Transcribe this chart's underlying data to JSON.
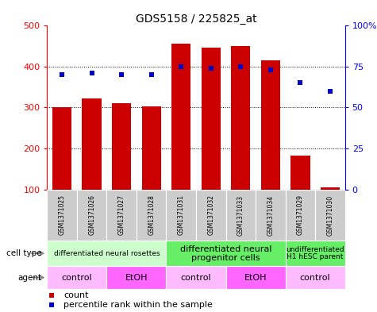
{
  "title": "GDS5158 / 225825_at",
  "samples": [
    "GSM1371025",
    "GSM1371026",
    "GSM1371027",
    "GSM1371028",
    "GSM1371031",
    "GSM1371032",
    "GSM1371033",
    "GSM1371034",
    "GSM1371029",
    "GSM1371030"
  ],
  "counts": [
    300,
    322,
    311,
    302,
    455,
    447,
    450,
    415,
    182,
    105
  ],
  "percentile_ranks": [
    70,
    71,
    70,
    70,
    75,
    74,
    75,
    73,
    65,
    60
  ],
  "ylim_left": [
    100,
    500
  ],
  "ylim_right": [
    0,
    100
  ],
  "left_ticks": [
    100,
    200,
    300,
    400,
    500
  ],
  "right_ticks": [
    0,
    25,
    50,
    75,
    100
  ],
  "bar_color": "#cc0000",
  "dot_color": "#0000cc",
  "cell_type_groups": [
    {
      "label": "differentiated neural rosettes",
      "start": 0,
      "end": 4,
      "color": "#ccffcc",
      "fontsize": 6.5
    },
    {
      "label": "differentiated neural\nprogenitor cells",
      "start": 4,
      "end": 8,
      "color": "#66ee66",
      "fontsize": 8
    },
    {
      "label": "undifferentiated\nH1 hESC parent",
      "start": 8,
      "end": 10,
      "color": "#66ee66",
      "fontsize": 6.5
    }
  ],
  "agent_groups": [
    {
      "label": "control",
      "start": 0,
      "end": 2,
      "color": "#ffbbff"
    },
    {
      "label": "EtOH",
      "start": 2,
      "end": 4,
      "color": "#ff66ff"
    },
    {
      "label": "control",
      "start": 4,
      "end": 6,
      "color": "#ffbbff"
    },
    {
      "label": "EtOH",
      "start": 6,
      "end": 8,
      "color": "#ff66ff"
    },
    {
      "label": "control",
      "start": 8,
      "end": 10,
      "color": "#ffbbff"
    }
  ],
  "sample_bg_color": "#cccccc",
  "legend_count_color": "#cc0000",
  "legend_percentile_color": "#0000cc",
  "row_label_color": "#888888",
  "arrow_color": "#888888"
}
